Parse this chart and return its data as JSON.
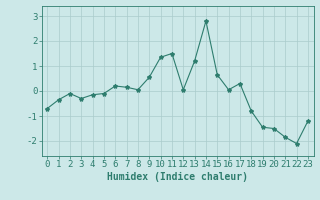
{
  "x": [
    0,
    1,
    2,
    3,
    4,
    5,
    6,
    7,
    8,
    9,
    10,
    11,
    12,
    13,
    14,
    15,
    16,
    17,
    18,
    19,
    20,
    21,
    22,
    23
  ],
  "y": [
    -0.7,
    -0.35,
    -0.1,
    -0.3,
    -0.15,
    -0.1,
    0.2,
    0.15,
    0.05,
    0.55,
    1.35,
    1.5,
    0.05,
    1.2,
    2.8,
    0.65,
    0.05,
    0.3,
    -0.8,
    -1.45,
    -1.5,
    -1.85,
    -2.1,
    -1.2
  ],
  "line_color": "#2e7d6e",
  "marker": "*",
  "marker_size": 3,
  "bg_color": "#cce8e8",
  "grid_color": "#aacccc",
  "xlabel": "Humidex (Indice chaleur)",
  "xlabel_fontsize": 7,
  "tick_fontsize": 6.5,
  "ylim": [
    -2.6,
    3.4
  ],
  "xlim": [
    -0.5,
    23.5
  ],
  "yticks": [
    -2,
    -1,
    0,
    1,
    2,
    3
  ],
  "xticks": [
    0,
    1,
    2,
    3,
    4,
    5,
    6,
    7,
    8,
    9,
    10,
    11,
    12,
    13,
    14,
    15,
    16,
    17,
    18,
    19,
    20,
    21,
    22,
    23
  ]
}
